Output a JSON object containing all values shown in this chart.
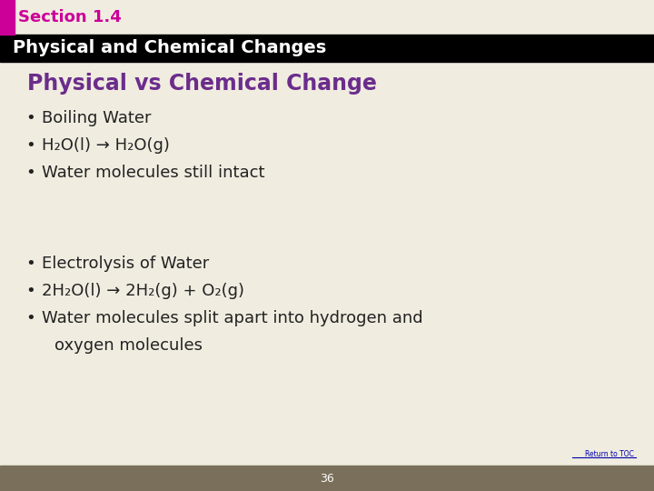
{
  "bg_color": "#f0ece0",
  "section_label": "Section 1.4",
  "section_color": "#cc0099",
  "header_bg": "#000000",
  "header_text": "Physical and Chemical Changes",
  "header_text_color": "#ffffff",
  "slide_title": "Physical vs Chemical Change",
  "slide_title_color": "#6b2d8b",
  "bullet_color": "#222222",
  "footer_bar_color": "#7a6f5a",
  "footer_number": "36",
  "return_to_top_text": "Return to TOC",
  "return_to_top_color": "#0000aa",
  "pink_bar_color": "#cc0099",
  "bullet_items_1": [
    "Boiling Water",
    "H₂O(l) → H₂O(g)",
    "Water molecules still intact"
  ],
  "bullet_items_2": [
    "Electrolysis of Water",
    "2H₂O(l) → 2H₂(g) + O₂(g)",
    "Water molecules split apart into hydrogen and",
    "    oxygen molecules"
  ]
}
